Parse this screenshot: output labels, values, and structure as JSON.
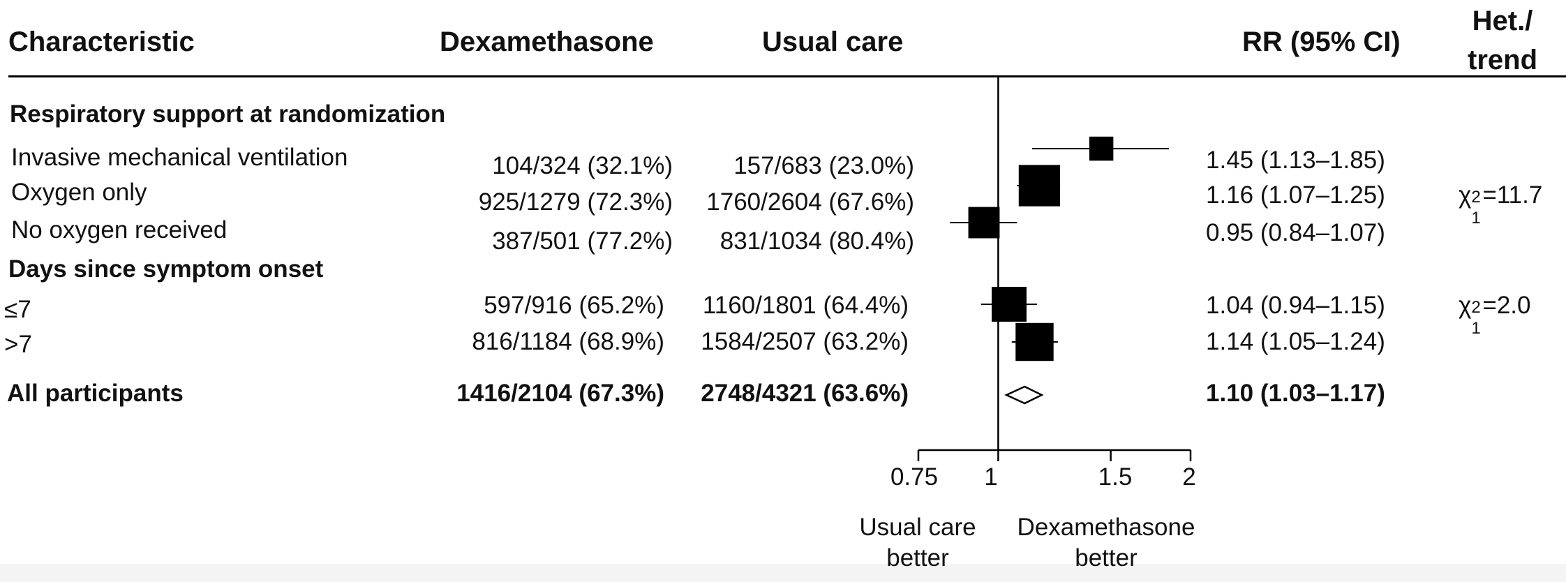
{
  "header": {
    "characteristic": "Characteristic",
    "dexamethasone": "Dexamethasone",
    "usual_care": "Usual care",
    "rr": "RR (95% CI)",
    "het_line1": "Het./",
    "het_line2": "trend"
  },
  "sections": [
    {
      "title": "Respiratory support at randomization",
      "rows": [
        {
          "label": "Invasive mechanical ventilation",
          "dex": "104/324 (32.1%)",
          "usual": "157/683 (23.0%)",
          "rr_text": "1.45 (1.13–1.85)"
        },
        {
          "label": "Oxygen only",
          "dex": "925/1279 (72.3%)",
          "usual": "1760/2604 (67.6%)",
          "rr_text": "1.16 (1.07–1.25)"
        },
        {
          "label": "No oxygen received",
          "dex": "387/501 (77.2%)",
          "usual": "831/1034 (80.4%)",
          "rr_text": "0.95 (0.84–1.07)"
        }
      ],
      "het": {
        "chi": "χ",
        "sup": "2",
        "sub": "1",
        "value": "=11.7"
      }
    },
    {
      "title": "Days since symptom onset",
      "rows": [
        {
          "label": "≤7",
          "dex": "597/916 (65.2%)",
          "usual": "1160/1801 (64.4%)",
          "rr_text": "1.04 (0.94–1.15)"
        },
        {
          "label": ">7",
          "dex": "816/1184 (68.9%)",
          "usual": "1584/2507 (63.2%)",
          "rr_text": "1.14 (1.05–1.24)"
        }
      ],
      "het": {
        "chi": "χ",
        "sup": "2",
        "sub": "1",
        "value": "=2.0"
      }
    }
  ],
  "overall": {
    "label": "All participants",
    "dex": "1416/2104 (67.3%)",
    "usual": "2748/4321 (63.6%)",
    "rr_text": "1.10 (1.03–1.17)"
  },
  "axis": {
    "ticks": [
      "0.75",
      "1",
      "1.5",
      "2"
    ],
    "left_label_1": "Usual care",
    "left_label_2": "better",
    "right_label_1": "Dexamethasone",
    "right_label_2": "better"
  },
  "chart_data": {
    "type": "forest",
    "scale": "log",
    "xlim": [
      0.75,
      2
    ],
    "reference_line": 1,
    "x_ticks": [
      0.75,
      1,
      1.5,
      2
    ],
    "rows": [
      {
        "label": "Invasive mechanical ventilation",
        "rr": 1.45,
        "lo": 1.13,
        "hi": 1.85,
        "weight": 0.14
      },
      {
        "label": "Oxygen only",
        "rr": 1.16,
        "lo": 1.07,
        "hi": 1.25,
        "weight": 0.62
      },
      {
        "label": "No oxygen received",
        "rr": 0.95,
        "lo": 0.84,
        "hi": 1.07,
        "weight": 0.3
      },
      {
        "label": "≤7",
        "rr": 1.04,
        "lo": 0.94,
        "hi": 1.15,
        "weight": 0.4
      },
      {
        "label": ">7",
        "rr": 1.14,
        "lo": 1.05,
        "hi": 1.24,
        "weight": 0.5
      },
      {
        "label": "All participants",
        "rr": 1.1,
        "lo": 1.03,
        "hi": 1.17,
        "marker": "diamond"
      }
    ]
  }
}
